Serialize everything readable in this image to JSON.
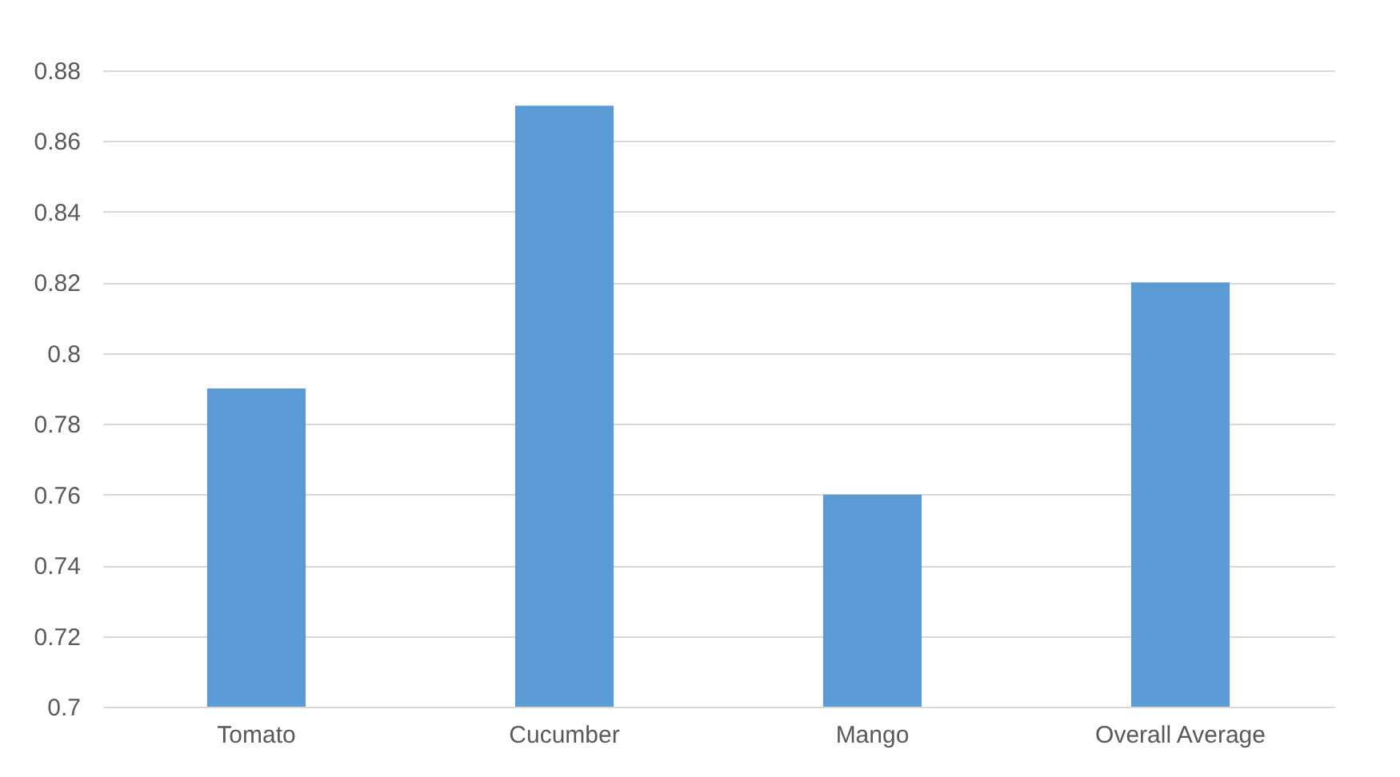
{
  "chart_data": {
    "type": "bar",
    "categories": [
      "Tomato",
      "Cucumber",
      "Mango",
      "Overall Average"
    ],
    "values": [
      0.79,
      0.87,
      0.76,
      0.82
    ],
    "color": "#5b9bd5",
    "ylim": [
      0.7,
      0.88
    ],
    "yticks": [
      0.7,
      0.72,
      0.74,
      0.76,
      0.78,
      0.8,
      0.82,
      0.84,
      0.86,
      0.88
    ],
    "grid": "y"
  }
}
